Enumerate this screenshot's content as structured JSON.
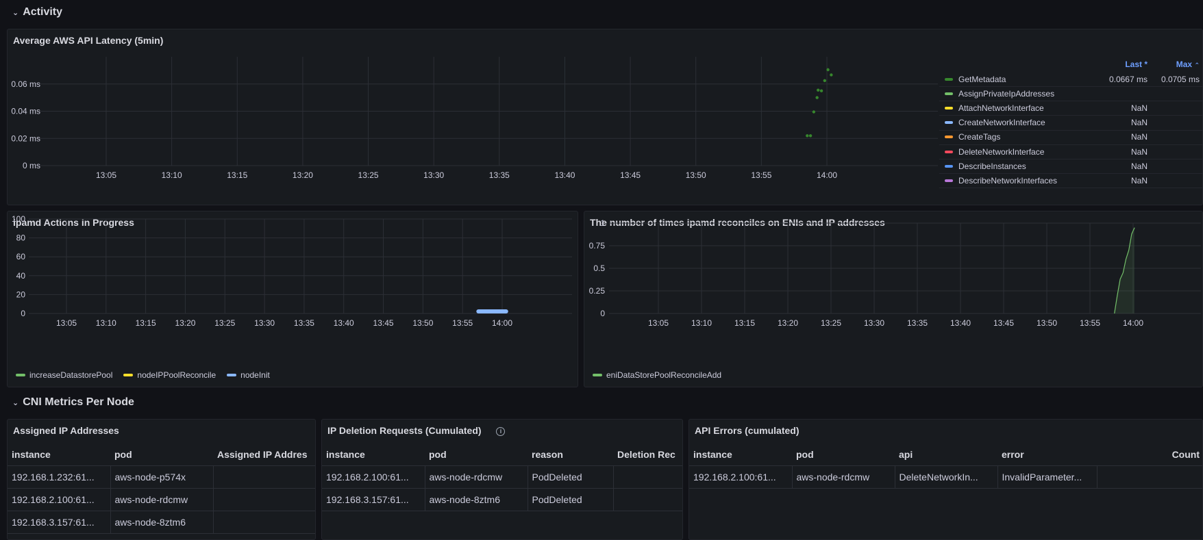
{
  "sections": {
    "activity": "Activity",
    "cni": "CNI Metrics Per Node"
  },
  "latency": {
    "title": "Average AWS API Latency (5min)",
    "legend_headers": {
      "last": "Last *",
      "max": "Max"
    },
    "legend": [
      {
        "name": "GetMetadata",
        "color": "#37872d",
        "last": "0.0667 ms",
        "max": "0.0705 ms"
      },
      {
        "name": "AssignPrivateIpAddresses",
        "color": "#73bf69",
        "last": "",
        "max": ""
      },
      {
        "name": "AttachNetworkInterface",
        "color": "#fade2a",
        "last": "NaN",
        "max": ""
      },
      {
        "name": "CreateNetworkInterface",
        "color": "#8ab8ff",
        "last": "NaN",
        "max": ""
      },
      {
        "name": "CreateTags",
        "color": "#ff9830",
        "last": "NaN",
        "max": ""
      },
      {
        "name": "DeleteNetworkInterface",
        "color": "#f2495c",
        "last": "NaN",
        "max": ""
      },
      {
        "name": "DescribeInstances",
        "color": "#5794f2",
        "last": "NaN",
        "max": ""
      },
      {
        "name": "DescribeNetworkInterfaces",
        "color": "#b877d9",
        "last": "NaN",
        "max": ""
      }
    ]
  },
  "actions": {
    "title": "ipamd Actions in Progress",
    "legend": [
      {
        "name": "increaseDatastorePool",
        "color": "#73bf69"
      },
      {
        "name": "nodeIPPoolReconcile",
        "color": "#fade2a"
      },
      {
        "name": "nodeInit",
        "color": "#8ab8ff"
      }
    ]
  },
  "reconciles": {
    "title": "The number of times ipamd reconciles on ENIs and IP addresses",
    "legend": [
      {
        "name": "eniDataStorePoolReconcileAdd",
        "color": "#73bf69"
      }
    ]
  },
  "chart_data": [
    {
      "type": "scatter",
      "title": "Average AWS API Latency (5min)",
      "x_ticks": [
        "13:05",
        "13:10",
        "13:15",
        "13:20",
        "13:25",
        "13:30",
        "13:35",
        "13:40",
        "13:45",
        "13:50",
        "13:55",
        "14:00"
      ],
      "y_ticks": [
        "0 ms",
        "0.02 ms",
        "0.04 ms",
        "0.06 ms"
      ],
      "ylim": [
        0,
        0.08
      ],
      "series": [
        {
          "name": "GetMetadata",
          "color": "#37872d",
          "points": [
            {
              "x": "13:58:30",
              "y": 0.022
            },
            {
              "x": "13:58:45",
              "y": 0.022
            },
            {
              "x": "13:59:00",
              "y": 0.0395
            },
            {
              "x": "13:59:15",
              "y": 0.05
            },
            {
              "x": "13:59:20",
              "y": 0.0555
            },
            {
              "x": "13:59:35",
              "y": 0.055
            },
            {
              "x": "13:59:50",
              "y": 0.0625
            },
            {
              "x": "14:00:05",
              "y": 0.0705
            },
            {
              "x": "14:00:20",
              "y": 0.0667
            }
          ]
        }
      ]
    },
    {
      "type": "line",
      "title": "ipamd Actions in Progress",
      "x_ticks": [
        "13:05",
        "13:10",
        "13:15",
        "13:20",
        "13:25",
        "13:30",
        "13:35",
        "13:40",
        "13:45",
        "13:50",
        "13:55",
        "14:00"
      ],
      "y_ticks": [
        "0",
        "20",
        "40",
        "60",
        "80",
        "100"
      ],
      "ylim": [
        0,
        100
      ],
      "series": [
        {
          "name": "nodeInit",
          "color": "#8ab8ff",
          "points": [
            {
              "x": "13:57:00",
              "y": 0
            },
            {
              "x": "14:00:30",
              "y": 0
            }
          ]
        }
      ]
    },
    {
      "type": "area",
      "title": "The number of times ipamd reconciles on ENIs and IP addresses",
      "x_ticks": [
        "13:05",
        "13:10",
        "13:15",
        "13:20",
        "13:25",
        "13:30",
        "13:35",
        "13:40",
        "13:45",
        "13:50",
        "13:55",
        "14:00"
      ],
      "y_ticks": [
        "0",
        "0.25",
        "0.5",
        "0.75",
        "1"
      ],
      "ylim": [
        0,
        1
      ],
      "series": [
        {
          "name": "eniDataStorePoolReconcileAdd",
          "color": "#73bf69",
          "points": [
            {
              "x": "13:57:50",
              "y": 0
            },
            {
              "x": "13:58:10",
              "y": 0.2
            },
            {
              "x": "13:58:30",
              "y": 0.38
            },
            {
              "x": "13:58:50",
              "y": 0.45
            },
            {
              "x": "13:59:10",
              "y": 0.6
            },
            {
              "x": "13:59:30",
              "y": 0.7
            },
            {
              "x": "13:59:50",
              "y": 0.88
            },
            {
              "x": "14:00:10",
              "y": 0.95
            }
          ]
        }
      ]
    }
  ],
  "assigned": {
    "title": "Assigned IP Addresses",
    "headers": [
      "instance",
      "pod",
      "Assigned IP Addres"
    ],
    "rows": [
      [
        "192.168.1.232:61...",
        "aws-node-p574x",
        ""
      ],
      [
        "192.168.2.100:61...",
        "aws-node-rdcmw",
        ""
      ],
      [
        "192.168.3.157:61...",
        "aws-node-8ztm6",
        ""
      ]
    ]
  },
  "deletion": {
    "title": "IP Deletion Requests (Cumulated)",
    "info_icon": "i",
    "headers": [
      "instance",
      "pod",
      "reason",
      "Deletion Rec"
    ],
    "rows": [
      [
        "192.168.2.100:61...",
        "aws-node-rdcmw",
        "PodDeleted",
        ""
      ],
      [
        "192.168.3.157:61...",
        "aws-node-8ztm6",
        "PodDeleted",
        ""
      ]
    ]
  },
  "apierrors": {
    "title": "API Errors (cumulated)",
    "headers": [
      "instance",
      "pod",
      "api",
      "error",
      "Count"
    ],
    "rows": [
      [
        "192.168.2.100:61...",
        "aws-node-rdcmw",
        "DeleteNetworkIn...",
        "InvalidParameter...",
        ""
      ]
    ]
  }
}
